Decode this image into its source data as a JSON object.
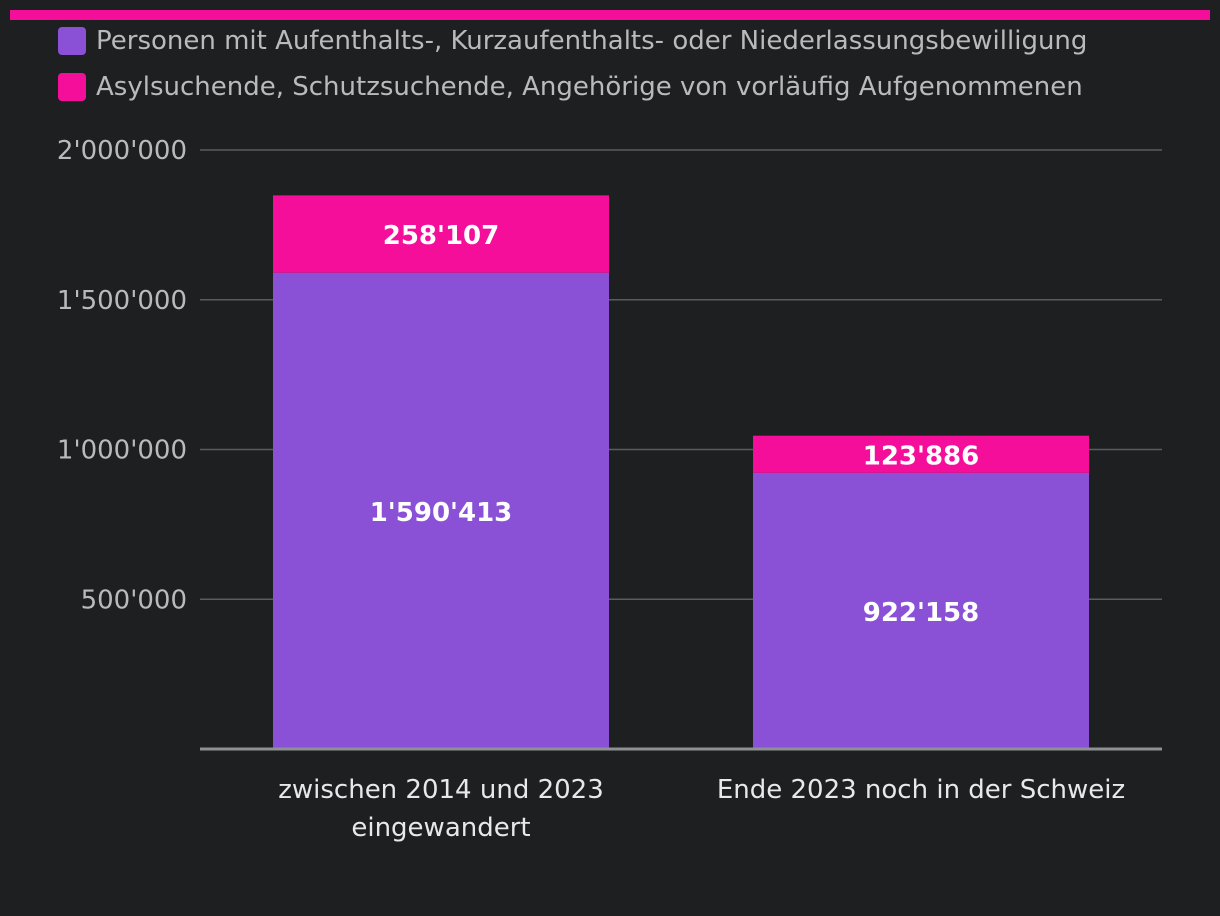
{
  "colors": {
    "background": "#1e1f21",
    "series_residence": "#8a51d6",
    "series_asylum": "#f50e9a",
    "grid": "#5a5b5e",
    "axis": "#8f9093",
    "text_muted": "#b9babd",
    "text_light": "#e8e8ea",
    "label": "#ffffff"
  },
  "legend": [
    {
      "label": "Personen mit Aufenthalts-, Kurzaufenthalts- oder Niederlassungsbewilligung",
      "color": "#8a51d6"
    },
    {
      "label": "Asylsuchende, Schutzsuchende, Angehörige von vorläufig Aufgenommenen",
      "color": "#f50e9a"
    }
  ],
  "chart_data": {
    "type": "bar",
    "stacked": true,
    "categories": [
      [
        "zwischen 2014 und 2023",
        "eingewandert"
      ],
      [
        "Ende 2023 noch in der Schweiz"
      ]
    ],
    "series": [
      {
        "name": "Personen mit Aufenthalts-, Kurzaufenthalts- oder Niederlassungsbewilligung",
        "values": [
          1590413,
          922158
        ],
        "labels": [
          "1'590'413",
          "922'158"
        ],
        "color": "#8a51d6"
      },
      {
        "name": "Asylsuchende, Schutzsuchende, Angehörige von vorläufig Aufgenommenen",
        "values": [
          258107,
          123886
        ],
        "labels": [
          "258'107",
          "123'886"
        ],
        "color": "#f50e9a"
      }
    ],
    "yticks": [
      500000,
      1000000,
      1500000,
      2000000
    ],
    "ytick_labels": [
      "500'000",
      "1'000'000",
      "1'500'000",
      "2'000'000"
    ],
    "ylim": [
      0,
      2000000
    ],
    "grid": true,
    "legend_position": "top-left",
    "title": "",
    "xlabel": "",
    "ylabel": ""
  }
}
